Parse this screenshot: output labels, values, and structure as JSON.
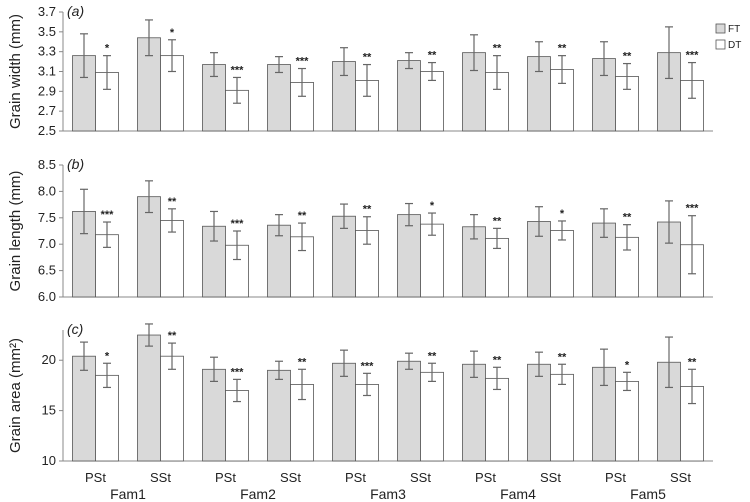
{
  "colors": {
    "ft": "#d9d9d9",
    "dt": "#ffffff",
    "stroke": "#555555",
    "axis": "#888888",
    "err": "#666666"
  },
  "chart_data": {
    "type": "bar",
    "legend": {
      "placement": "right",
      "entries": [
        {
          "name": "FT",
          "color": "#d9d9d9"
        },
        {
          "name": "DT",
          "color": "#ffffff"
        }
      ]
    },
    "group_labels": [
      "PSt",
      "SSt",
      "PSt",
      "SSt",
      "PSt",
      "SSt",
      "PSt",
      "SSt",
      "PSt",
      "SSt"
    ],
    "families": [
      "Fam1",
      "Fam2",
      "Fam3",
      "Fam4",
      "Fam5"
    ],
    "panels": [
      {
        "label": "(a)",
        "ylabel": "Grain width (mm)",
        "ylim": [
          2.5,
          3.7
        ],
        "yticks": [
          "2.5",
          "2.7",
          "2.9",
          "3.1",
          "3.3",
          "3.5",
          "3.7"
        ],
        "ytick_values": [
          2.5,
          2.7,
          2.9,
          3.1,
          3.3,
          3.5,
          3.7
        ],
        "series": [
          {
            "name": "FT",
            "values": [
              3.26,
              3.44,
              3.17,
              3.17,
              3.2,
              3.21,
              3.29,
              3.25,
              3.23,
              3.29
            ],
            "errors": [
              0.22,
              0.18,
              0.12,
              0.08,
              0.14,
              0.08,
              0.18,
              0.15,
              0.17,
              0.26
            ]
          },
          {
            "name": "DT",
            "values": [
              3.09,
              3.26,
              2.91,
              2.99,
              3.01,
              3.1,
              3.09,
              3.12,
              3.05,
              3.01
            ],
            "errors": [
              0.17,
              0.16,
              0.13,
              0.14,
              0.16,
              0.09,
              0.17,
              0.14,
              0.13,
              0.18
            ]
          }
        ],
        "stars": [
          "*",
          "*",
          "***",
          "***",
          "**",
          "**",
          "**",
          "**",
          "**",
          "***"
        ]
      },
      {
        "label": "(b)",
        "ylabel": "Grain length (mm)",
        "ylim": [
          6.0,
          8.5
        ],
        "yticks": [
          "6.0",
          "6.5",
          "7.0",
          "7.5",
          "8.0",
          "8.5"
        ],
        "ytick_values": [
          6.0,
          6.5,
          7.0,
          7.5,
          8.0,
          8.5
        ],
        "series": [
          {
            "name": "FT",
            "values": [
              7.62,
              7.9,
              7.34,
              7.36,
              7.53,
              7.56,
              7.33,
              7.43,
              7.4,
              7.42
            ],
            "errors": [
              0.42,
              0.3,
              0.28,
              0.2,
              0.23,
              0.21,
              0.23,
              0.28,
              0.27,
              0.4
            ]
          },
          {
            "name": "DT",
            "values": [
              7.18,
              7.45,
              6.98,
              7.14,
              7.26,
              7.38,
              7.11,
              7.26,
              7.13,
              6.99
            ],
            "errors": [
              0.24,
              0.22,
              0.27,
              0.26,
              0.26,
              0.21,
              0.19,
              0.18,
              0.24,
              0.55
            ]
          }
        ],
        "stars": [
          "***",
          "**",
          "***",
          "**",
          "**",
          "*",
          "**",
          "*",
          "**",
          "***"
        ]
      },
      {
        "label": "(c)",
        "ylabel": "Grain area (mm²)",
        "ylim": [
          10,
          23
        ],
        "yticks": [
          "10",
          "15",
          "20"
        ],
        "ytick_values": [
          10,
          15,
          20
        ],
        "series": [
          {
            "name": "FT",
            "values": [
              20.4,
              22.5,
              19.1,
              19.0,
              19.7,
              19.9,
              19.6,
              19.6,
              19.3,
              19.8
            ],
            "errors": [
              1.4,
              1.1,
              1.2,
              0.9,
              1.3,
              0.8,
              1.3,
              1.2,
              1.8,
              2.5
            ]
          },
          {
            "name": "DT",
            "values": [
              18.5,
              20.4,
              17.0,
              17.6,
              17.6,
              18.8,
              18.2,
              18.6,
              17.9,
              17.4
            ],
            "errors": [
              1.2,
              1.3,
              1.1,
              1.5,
              1.1,
              0.9,
              1.1,
              1.0,
              0.9,
              1.7
            ]
          }
        ],
        "stars": [
          "*",
          "**",
          "***",
          "**",
          "***",
          "**",
          "**",
          "**",
          "*",
          "**"
        ]
      }
    ]
  }
}
